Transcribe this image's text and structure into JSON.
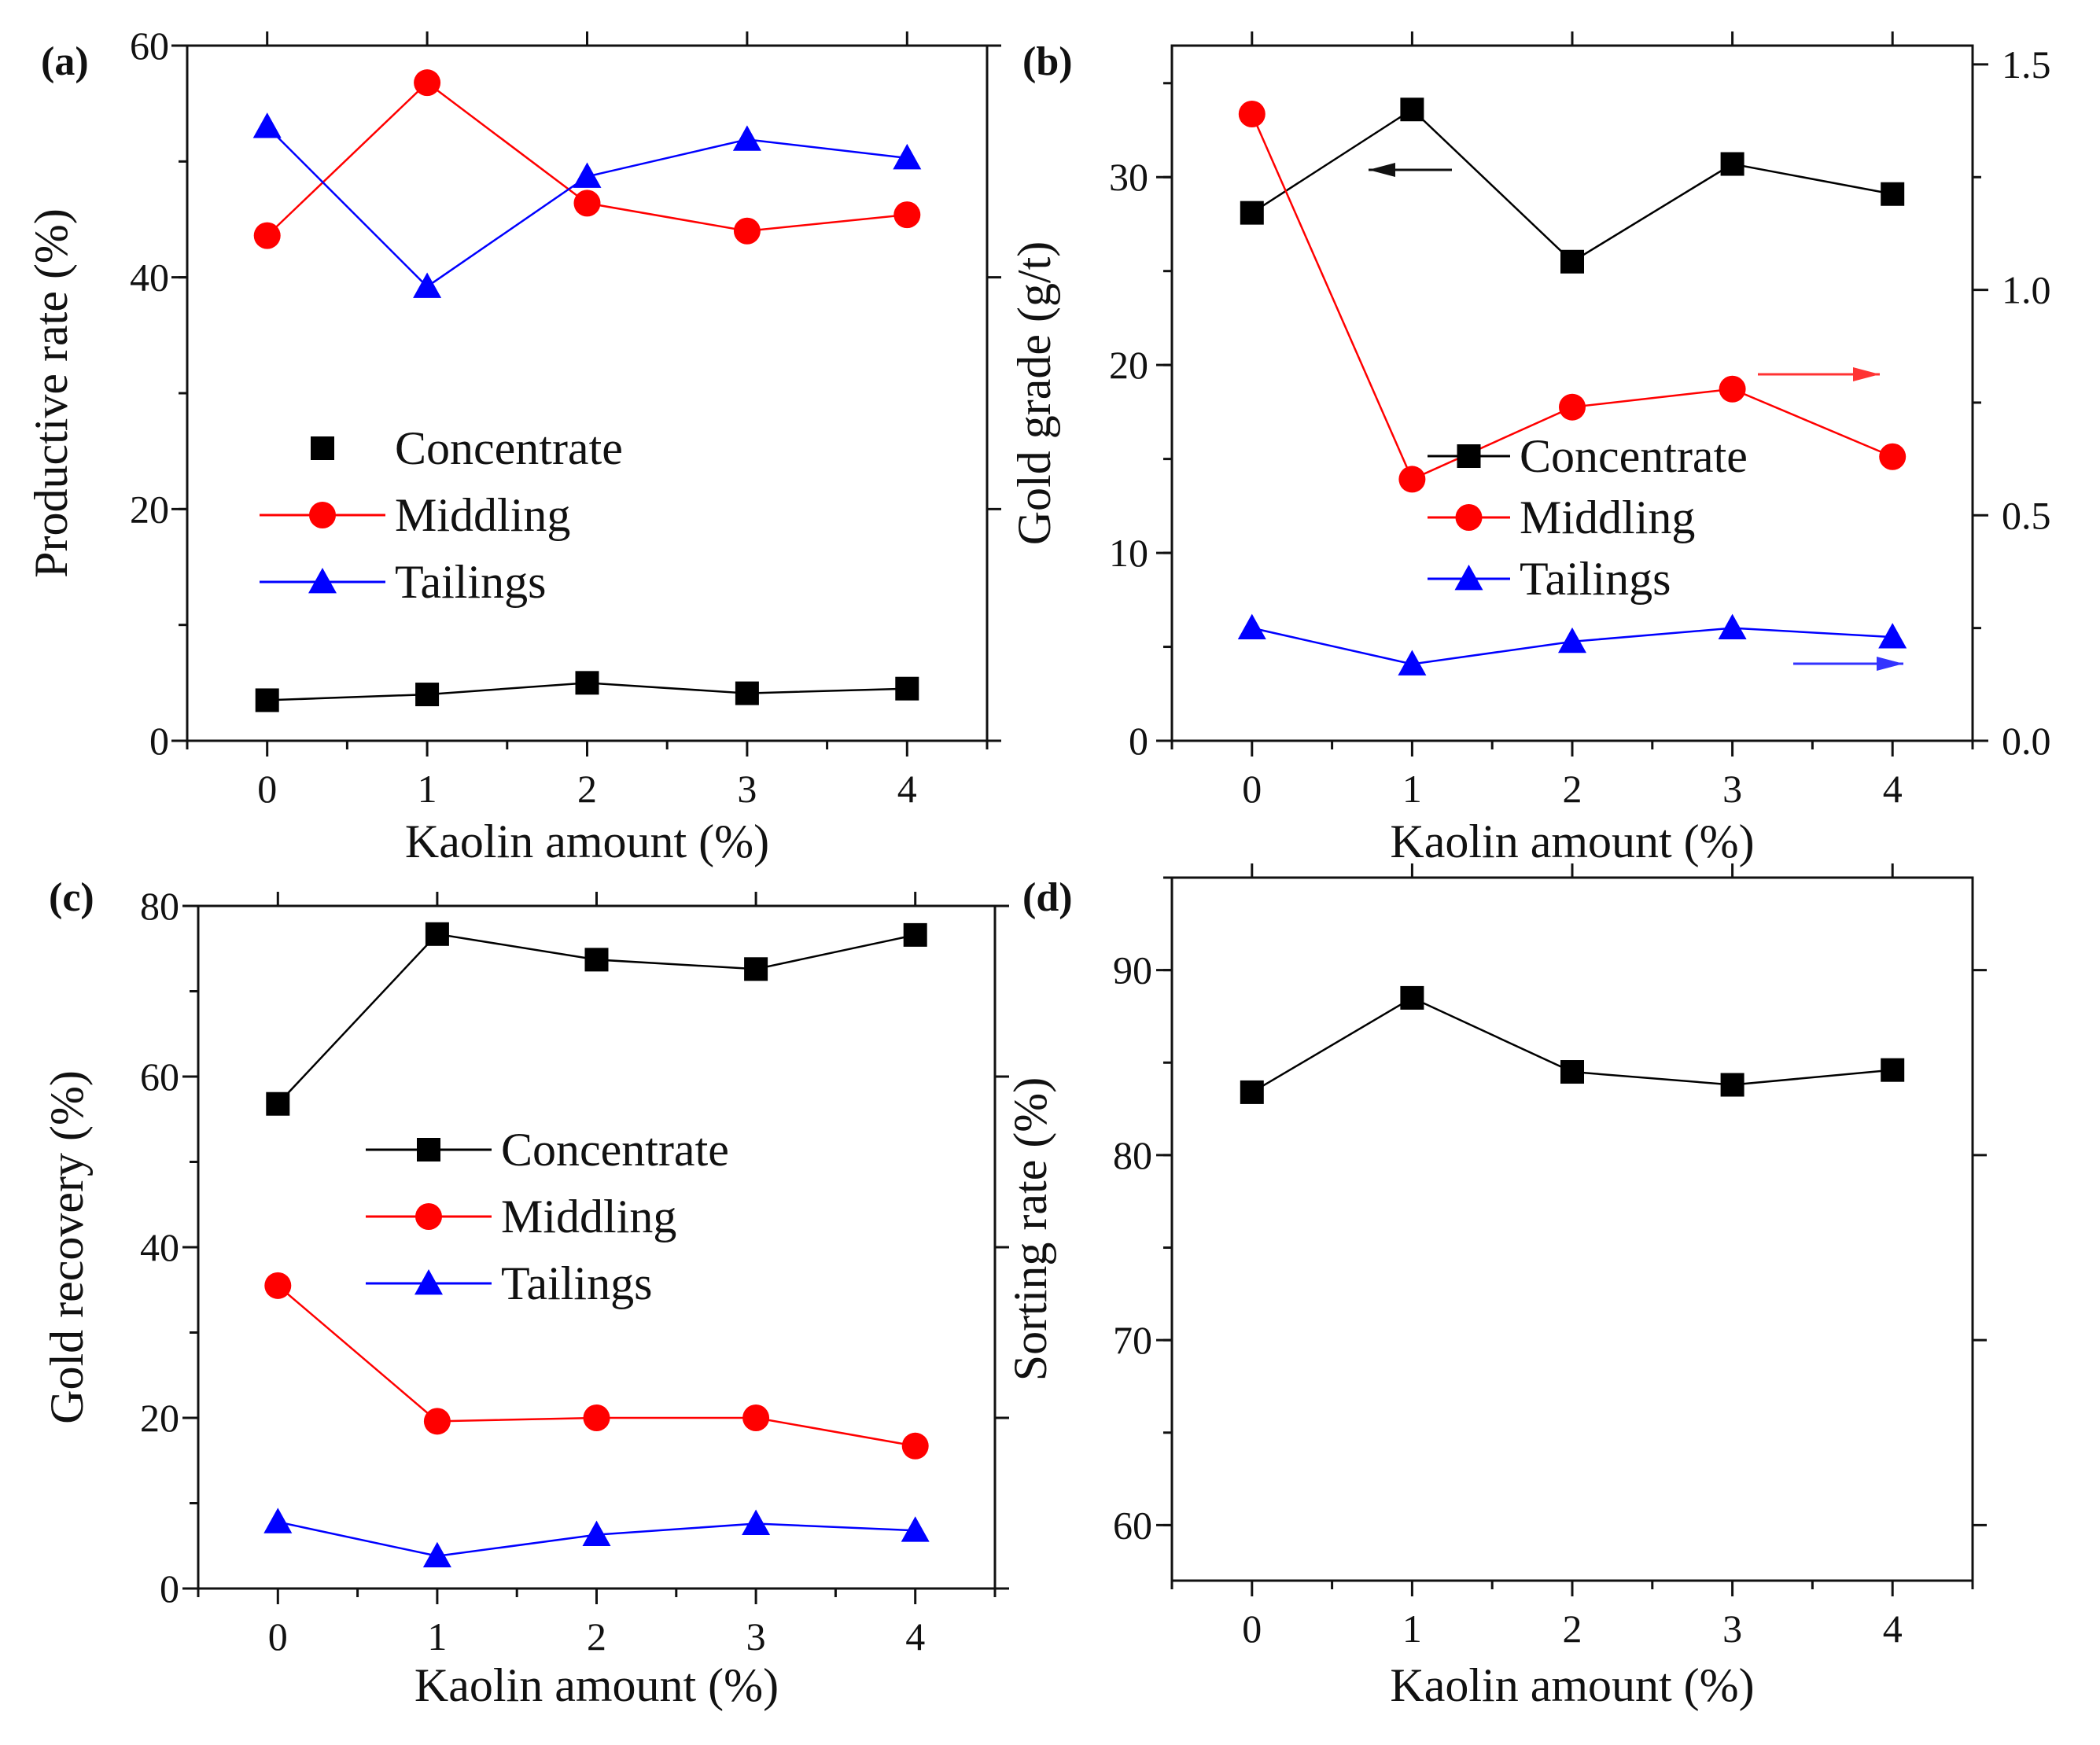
{
  "chart_data": [
    {
      "panel": "(a)",
      "type": "line",
      "xlabel": "Kaolin amount (%)",
      "ylabel": "Productive rate (%)",
      "x": [
        0,
        1,
        2,
        3,
        4
      ],
      "xticks": [
        "0",
        "1",
        "2",
        "3",
        "4"
      ],
      "xlim": [
        -0.5,
        4.5
      ],
      "ylim": [
        0,
        60
      ],
      "yticks": [
        "0",
        "20",
        "40",
        "60"
      ],
      "legend_position": "center",
      "series": [
        {
          "name": "Concentrate",
          "marker": "square",
          "color": "#000000",
          "values": [
            3.5,
            4.0,
            5.0,
            4.1,
            4.5
          ]
        },
        {
          "name": "Middling",
          "marker": "circle",
          "color": "#ff0000",
          "values": [
            43.6,
            56.8,
            46.4,
            44.0,
            45.4
          ]
        },
        {
          "name": "Tailings",
          "marker": "triangle",
          "color": "#0000ff",
          "values": [
            53.0,
            39.2,
            48.7,
            51.9,
            50.3
          ]
        }
      ]
    },
    {
      "panel": "(b)",
      "type": "line",
      "xlabel": "Kaolin amount (%)",
      "ylabel": "Gold grade (g/t)",
      "x": [
        0,
        1,
        2,
        3,
        4
      ],
      "xticks": [
        "0",
        "1",
        "2",
        "3",
        "4"
      ],
      "xlim": [
        -0.5,
        4.5
      ],
      "ylim": [
        0,
        37
      ],
      "yticks": [
        "0",
        "10",
        "20",
        "30"
      ],
      "y2lim": [
        0,
        1.5417
      ],
      "y2ticks": [
        "0.0",
        "0.5",
        "1.0",
        "1.5"
      ],
      "legend_position": "right",
      "series": [
        {
          "name": "Concentrate",
          "marker": "square",
          "color": "#000000",
          "axis": "left",
          "values": [
            28.1,
            33.6,
            25.5,
            30.7,
            29.1
          ]
        },
        {
          "name": "Middling",
          "marker": "circle",
          "color": "#ff0000",
          "axis": "right",
          "values": [
            1.39,
            0.58,
            0.74,
            0.78,
            0.63
          ]
        },
        {
          "name": "Tailings",
          "marker": "triangle",
          "color": "#0000ff",
          "axis": "right",
          "values": [
            0.25,
            0.17,
            0.22,
            0.25,
            0.23
          ]
        }
      ]
    },
    {
      "panel": "(c)",
      "type": "line",
      "xlabel": "Kaolin amount (%)",
      "ylabel": "Gold recovery (%)",
      "x": [
        0,
        1,
        2,
        3,
        4
      ],
      "xticks": [
        "0",
        "1",
        "2",
        "3",
        "4"
      ],
      "xlim": [
        -0.5,
        4.5
      ],
      "ylim": [
        0,
        80
      ],
      "yticks": [
        "0",
        "20",
        "40",
        "60",
        "80"
      ],
      "legend_position": "center",
      "series": [
        {
          "name": "Concentrate",
          "marker": "square",
          "color": "#000000",
          "values": [
            56.8,
            76.7,
            73.7,
            72.6,
            76.6
          ]
        },
        {
          "name": "Middling",
          "marker": "circle",
          "color": "#ff0000",
          "values": [
            35.5,
            19.6,
            20.0,
            20.0,
            16.7
          ]
        },
        {
          "name": "Tailings",
          "marker": "triangle",
          "color": "#0000ff",
          "values": [
            7.8,
            3.8,
            6.3,
            7.6,
            6.8
          ]
        }
      ]
    },
    {
      "panel": "(d)",
      "type": "line",
      "xlabel": "Kaolin amount (%)",
      "ylabel": "Sorting rate (%)",
      "x": [
        0,
        1,
        2,
        3,
        4
      ],
      "xticks": [
        "0",
        "1",
        "2",
        "3",
        "4"
      ],
      "xlim": [
        -0.5,
        4.5
      ],
      "ylim": [
        57,
        95
      ],
      "yticks": [
        "60",
        "70",
        "80",
        "90"
      ],
      "legend_position": "none",
      "series": [
        {
          "name": "",
          "marker": "square",
          "color": "#000000",
          "values": [
            83.4,
            88.5,
            84.5,
            83.8,
            84.6
          ]
        }
      ]
    }
  ]
}
